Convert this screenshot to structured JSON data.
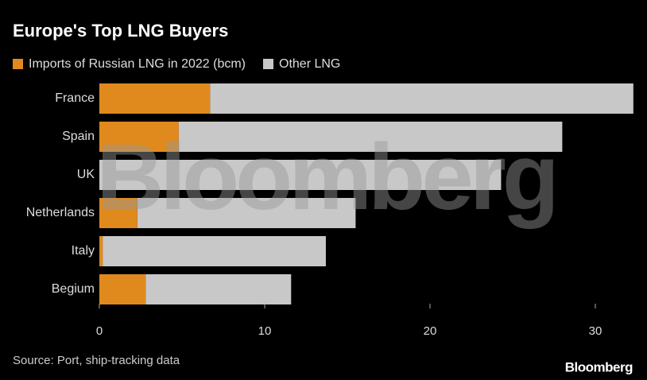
{
  "chart_data": {
    "type": "stacked-barh",
    "title": "Europe's Top LNG Buyers",
    "categories": [
      "France",
      "Spain",
      "UK",
      "Netherlands",
      "Italy",
      "Begium"
    ],
    "series": [
      {
        "name": "Imports of Russian LNG in 2022 (bcm)",
        "color": "#e08a1e",
        "values": [
          6.7,
          4.8,
          0,
          2.3,
          0.2,
          2.8
        ]
      },
      {
        "name": "Other LNG",
        "color": "#c8c8c8",
        "values": [
          25.6,
          23.2,
          24.3,
          13.2,
          13.5,
          8.8
        ]
      }
    ],
    "xlim": [
      0,
      32.5
    ],
    "xticks": [
      0,
      10,
      20,
      30
    ],
    "source": "Source: Port, ship-tracking data",
    "watermark": "Bloomberg",
    "logo": "Bloomberg"
  }
}
